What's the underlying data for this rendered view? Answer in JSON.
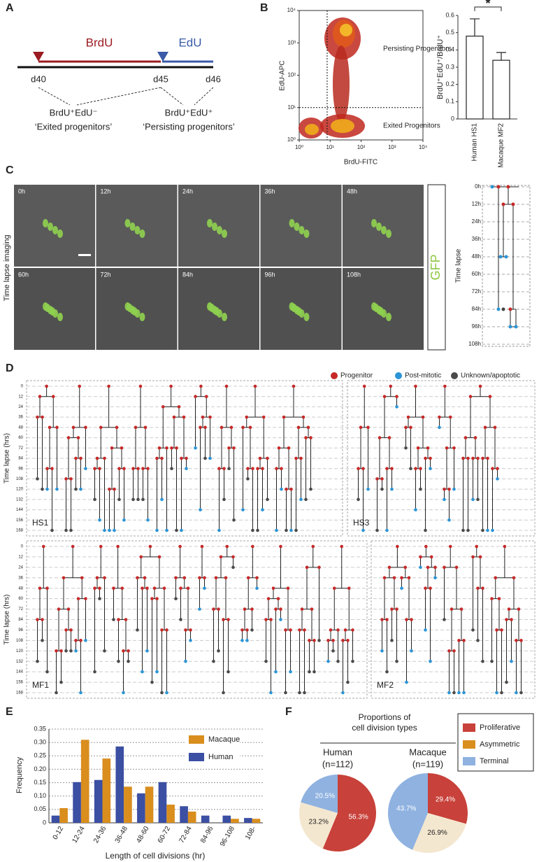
{
  "panel_a": {
    "label": "A",
    "brdu": "BrdU",
    "edu": "EdU",
    "days": [
      "d40",
      "d45",
      "d46"
    ],
    "groups": [
      {
        "name": "BrdU⁺EdU⁻",
        "desc": "‘Exited progenitors’"
      },
      {
        "name": "BrdU⁺EdU⁺",
        "desc": "‘Persisting progenitors’"
      }
    ]
  },
  "panel_b": {
    "label": "B",
    "scatter": {
      "type": "density",
      "xlabel": "BrdU-FITC",
      "ylabel": "EdU-APC",
      "log_scale": true,
      "xlim": [
        1,
        10000
      ],
      "ylim": [
        1,
        10000
      ],
      "xticks": [
        {
          "value": 1,
          "label": "10⁰"
        },
        {
          "value": 10,
          "label": "10¹"
        },
        {
          "value": 100,
          "label": "10²"
        },
        {
          "value": 1000,
          "label": "10³"
        },
        {
          "value": 10000,
          "label": "10⁴"
        }
      ],
      "yticks": [
        {
          "value": 1,
          "label": "10⁰"
        },
        {
          "value": 10,
          "label": "10¹"
        },
        {
          "value": 100,
          "label": "10²"
        },
        {
          "value": 1000,
          "label": "10³"
        },
        {
          "value": 10000,
          "label": "10⁴"
        }
      ],
      "gates": {
        "x": 8,
        "y": 10
      },
      "annotations": [
        "Persisting Progenitors",
        "Exited Progenitors"
      ]
    },
    "bars": {
      "type": "bar",
      "categories": [
        "Human HS1",
        "Macaque MF2"
      ],
      "values": [
        0.48,
        0.34
      ],
      "errors": [
        0.1,
        0.045
      ],
      "ylabel": "BrdU⁺EdU⁺/BrdU⁺",
      "ylim": [
        0,
        0.6
      ],
      "yticks": [
        0,
        0.1,
        0.2,
        0.3,
        0.4,
        0.5,
        0.6
      ],
      "annotation": "*"
    }
  },
  "panel_c": {
    "label": "C",
    "side_label": "Time lapse imaging",
    "channel": "GFP",
    "frames": [
      "0h",
      "12h",
      "24h",
      "36h",
      "48h",
      "60h",
      "72h",
      "84h",
      "96h",
      "108h"
    ],
    "tree_axis": {
      "ylabel": "Time lapse",
      "yticks": [
        "0h",
        "12h",
        "24h",
        "36h",
        "48h",
        "60h",
        "72h",
        "84h",
        "96h",
        "108h"
      ]
    }
  },
  "panel_d": {
    "label": "D",
    "legend": [
      {
        "name": "Progenitor",
        "color": "#c62828"
      },
      {
        "name": "Post-mitotic",
        "color": "#2b94d6"
      },
      {
        "name": "Unknown/apoptotic",
        "color": "#4a4a4a"
      }
    ],
    "ylabel": "Time lapse (hrs)",
    "yticks": [
      0,
      12,
      24,
      36,
      48,
      60,
      72,
      84,
      96,
      108,
      120,
      132,
      144,
      156,
      168
    ],
    "lines": [
      "HS1",
      "HS3",
      "MF1",
      "MF2"
    ]
  },
  "panel_e": {
    "label": "E",
    "chart_data": {
      "type": "bar",
      "xlabel": "Length of cell divisions (hr)",
      "ylabel": "Frequency",
      "categories": [
        "0-12",
        "12-24",
        "24-36",
        "36-48",
        "48-60",
        "60-72",
        "72-84",
        "84-96",
        "96-108",
        "108-"
      ],
      "series": [
        {
          "name": "Human",
          "color": "#3b4fa3",
          "values": [
            0.027,
            0.152,
            0.16,
            0.285,
            0.11,
            0.152,
            0.062,
            0.027,
            0.027,
            0.018
          ]
        },
        {
          "name": "Macaque",
          "color": "#d98e1e",
          "values": [
            0.055,
            0.31,
            0.24,
            0.135,
            0.135,
            0.068,
            0.042,
            0,
            0.015,
            0.015
          ]
        }
      ],
      "ylim": [
        0,
        0.35
      ],
      "yticks": [
        0,
        0.05,
        {
          "value": 0.1,
          "label": "0.10"
        },
        0.15,
        {
          "value": 0.2,
          "label": "0.20"
        },
        0.25,
        {
          "value": 0.3,
          "label": "0.30"
        },
        0.35
      ],
      "grid": true
    }
  },
  "panel_f": {
    "label": "F",
    "chart_data": {
      "type": "pie",
      "title_lines": [
        "Proportions of",
        "cell division types"
      ],
      "categories": [
        "Proliferative",
        "Asymmetric",
        "Terminal"
      ],
      "colors": [
        "#c8413a",
        "#f4e7cf",
        "#8fb2e0"
      ],
      "legend_colors": [
        "#c8413a",
        "#d98e1e",
        "#8fb2e0"
      ],
      "pies": [
        {
          "name": "Human",
          "n": "(n=112)",
          "values": [
            56.3,
            23.2,
            20.5
          ],
          "value_labels": [
            "56.3%",
            "23.2%",
            "20.5%"
          ]
        },
        {
          "name": "Macaque",
          "n": "(n=119)",
          "values": [
            29.4,
            26.9,
            43.7
          ],
          "value_labels": [
            "29.4%",
            "26.9%",
            "43.7%"
          ]
        }
      ]
    }
  }
}
